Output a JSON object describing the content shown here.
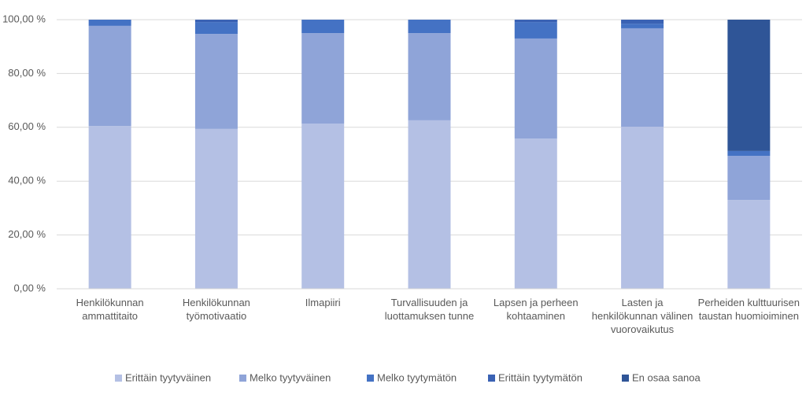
{
  "chart_data": {
    "type": "stacked_bar",
    "categories": [
      "Henkilökunnan ammattitaito",
      "Henkilökunnan työmotivaatio",
      "Ilmapiiri",
      "Turvallisuuden ja luottamuksen tunne",
      "Lapsen ja perheen kohtaaminen",
      "Lasten ja henkilökunnan välinen vuorovaikutus",
      "Perheiden kulttuurisen taustan huomioiminen"
    ],
    "series": [
      {
        "name": "Erittäin tyytyväinen",
        "color": "#b4c0e4",
        "values": [
          60.5,
          59.4,
          61.4,
          62.6,
          55.8,
          60.2,
          33.0
        ]
      },
      {
        "name": "Melko tyytyväinen",
        "color": "#8fa4d8",
        "values": [
          37.2,
          35.3,
          33.6,
          32.4,
          37.2,
          36.6,
          16.4
        ]
      },
      {
        "name": "Melko tyytymätön",
        "color": "#4472c4",
        "values": [
          2.3,
          4.4,
          5.0,
          5.0,
          6.1,
          1.7,
          1.8
        ]
      },
      {
        "name": "Erittäin tyytymätön",
        "color": "#3a62b4",
        "values": [
          0,
          0.9,
          0,
          0,
          0.9,
          1.5,
          0
        ]
      },
      {
        "name": "En osaa sanoa",
        "color": "#2f5597",
        "values": [
          0,
          0,
          0,
          0,
          0,
          0,
          48.8
        ]
      }
    ],
    "ylim": [
      0,
      100
    ],
    "yticks": [
      {
        "value": 0,
        "label": "0,00 %"
      },
      {
        "value": 20,
        "label": "20,00 %"
      },
      {
        "value": 40,
        "label": "40,00 %"
      },
      {
        "value": 60,
        "label": "60,00 %"
      },
      {
        "value": 80,
        "label": "80,00 %"
      },
      {
        "value": 100,
        "label": "100,00 %"
      }
    ],
    "grid": true,
    "legend": "bottom"
  }
}
